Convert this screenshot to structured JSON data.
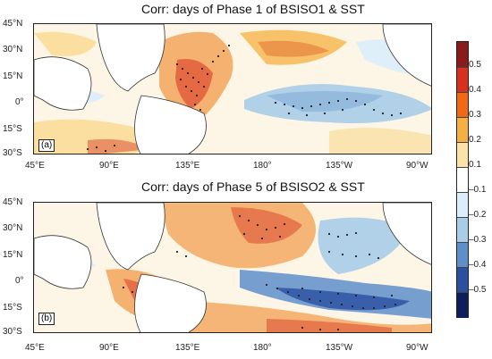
{
  "panels": [
    {
      "title": "Corr: days of Phase 1 of BSISO1 & SST",
      "letter": "(a)",
      "lat_labels": [
        "45°N",
        "30°N",
        "15°N",
        "0°",
        "15°S",
        "30°S"
      ],
      "lon_labels": [
        "45°E",
        "90°E",
        "135°E",
        "180°",
        "135°W",
        "90°W"
      ]
    },
    {
      "title": "Corr: days of Phase 5 of BSISO2 & SST",
      "letter": "(b)",
      "lat_labels": [
        "45°N",
        "30°N",
        "15°N",
        "0°",
        "15°S",
        "30°S"
      ],
      "lon_labels": [
        "45°E",
        "90°E",
        "135°E",
        "180°",
        "135°W",
        "90°W"
      ]
    }
  ],
  "colorbar": {
    "labels": [
      "0.5",
      "0.4",
      "0.3",
      "0.2",
      "0.1",
      "–0.1",
      "–0.2",
      "–0.3",
      "–0.4",
      "–0.5"
    ],
    "colors": [
      "#8b1a1a",
      "#d7301f",
      "#f16913",
      "#f5b041",
      "#fbe2a6",
      "#ffffff",
      "#dceefb",
      "#a9cde8",
      "#5e8fcb",
      "#2c4fa0",
      "#101d5c"
    ]
  }
}
